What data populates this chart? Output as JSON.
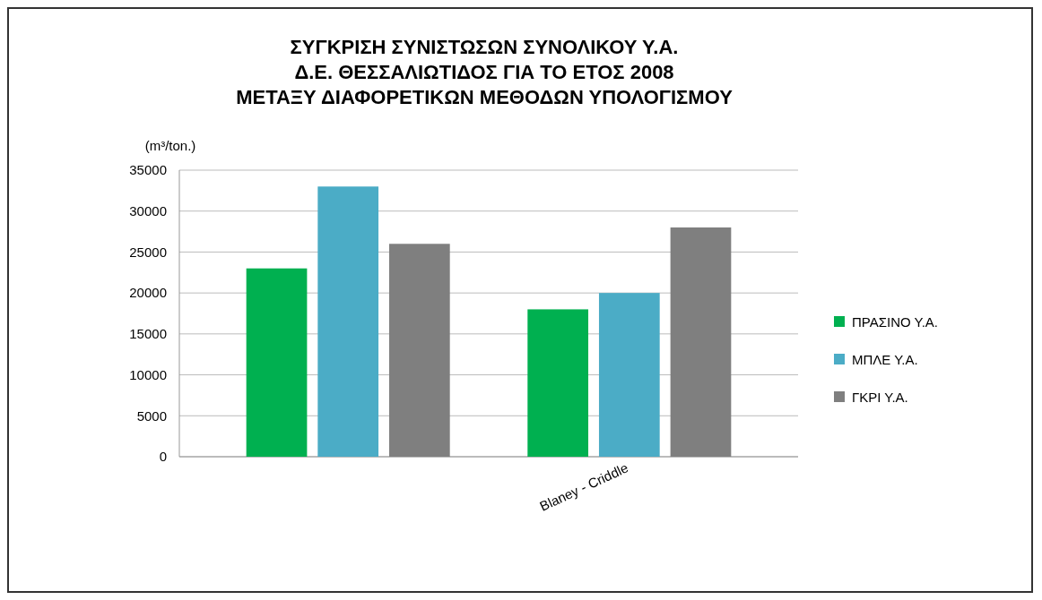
{
  "chart_data": {
    "type": "bar",
    "title": "ΣΥΓΚΡΙΣΗ ΣΥΝΙΣΤΩΣΩΝ ΣΥΝΟΛΙΚΟΥ Υ.Α.\nΔ.Ε. ΘΕΣΣΑΛΙΩΤΙΔΟΣ ΓΙΑ ΤΟ ΕΤΟΣ 2008\nΜΕΤΑΞΥ ΔΙΑΦΟΡΕΤΙΚΩΝ ΜΕΘΟΔΩΝ ΥΠΟΛΟΓΙΣΜΟΥ",
    "ylabel": "(m³/ton.)",
    "categories": [
      null,
      "Blaney - Criddle"
    ],
    "series": [
      {
        "name": "ΠΡΑΣΙΝΟ Υ.Α.",
        "color": "#00b050",
        "values": [
          23000,
          18000
        ]
      },
      {
        "name": "ΜΠΛΕ Υ.Α.",
        "color": "#4bacc6",
        "values": [
          33000,
          20000
        ]
      },
      {
        "name": "ΓΚΡΙ Υ.Α.",
        "color": "#7f7f7f",
        "values": [
          26000,
          28000
        ]
      }
    ],
    "ylim": [
      0,
      35000
    ],
    "yticks": [
      0,
      5000,
      10000,
      15000,
      20000,
      25000,
      30000,
      35000
    ],
    "grid": "y",
    "legend": "right"
  }
}
